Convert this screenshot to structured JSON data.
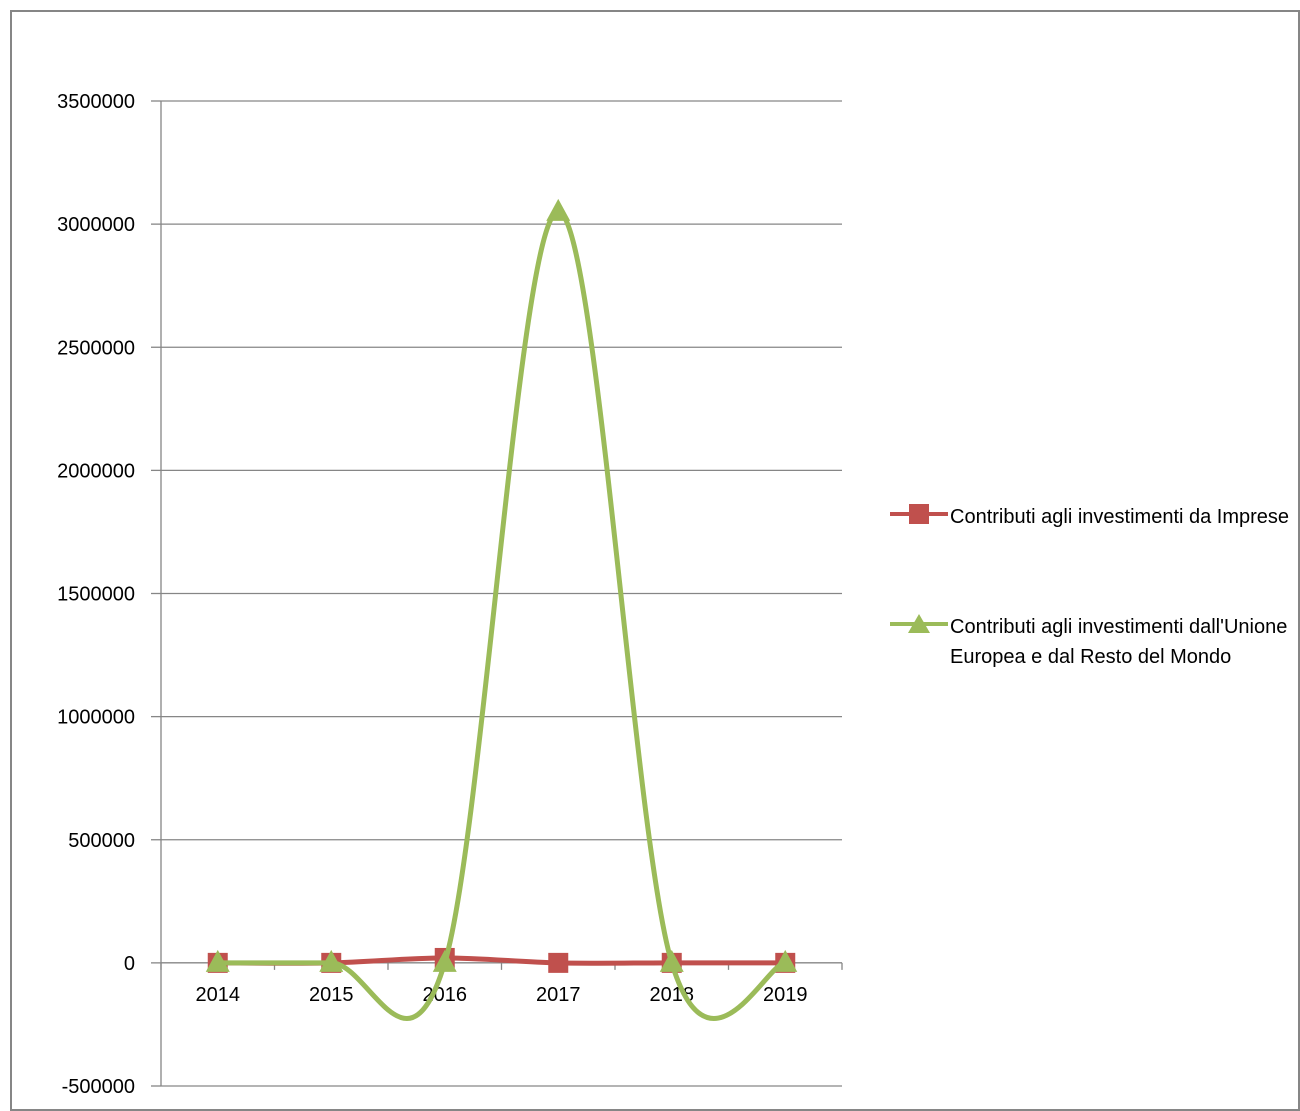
{
  "chart_data": {
    "type": "line",
    "title": "",
    "x": [
      "2014",
      "2015",
      "2016",
      "2017",
      "2018",
      "2019"
    ],
    "ylim": [
      -500000,
      3500000
    ],
    "yticks": [
      -500000,
      0,
      500000,
      1000000,
      1500000,
      2000000,
      2500000,
      3000000,
      3500000
    ],
    "ytick_labels": [
      "-500000",
      "0",
      "500000",
      "1000000",
      "1500000",
      "2000000",
      "2500000",
      "3000000",
      "3500000"
    ],
    "xlabel": "",
    "ylabel": "",
    "grid": "horizontal",
    "legend_position": "right",
    "smooth": true,
    "series": [
      {
        "name": "Contributi agli investimenti da Imprese",
        "values": [
          0,
          0,
          20000,
          0,
          0,
          0
        ],
        "color": "#C0504D",
        "marker": "square"
      },
      {
        "name": "Contributi agli investimenti dall'Unione Europea e dal Resto del Mondo",
        "values": [
          0,
          0,
          0,
          3050000,
          0,
          0
        ],
        "color": "#9BBB59",
        "marker": "triangle"
      }
    ]
  }
}
